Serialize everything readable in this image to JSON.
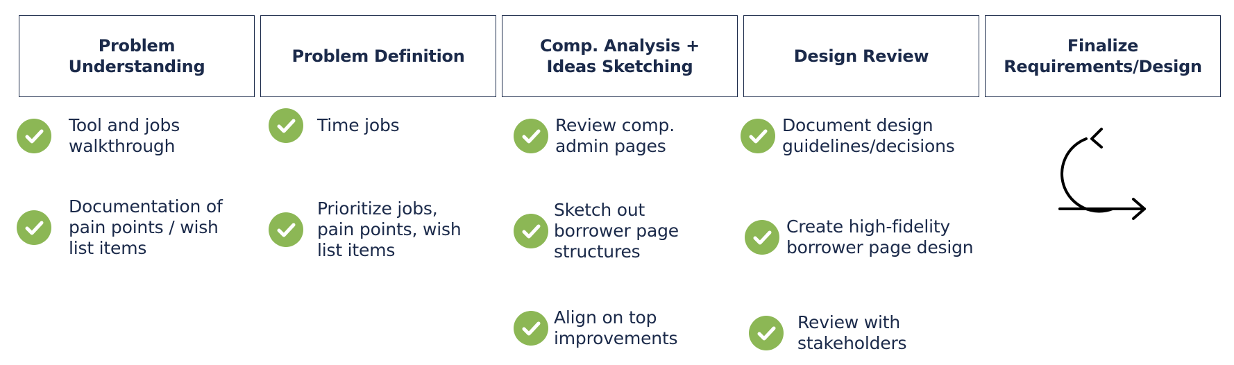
{
  "phases": [
    {
      "title": "Problem\nUnderstanding",
      "tasks": [
        "Tool and jobs\nwalkthrough",
        "Documentation of\npain points / wish\nlist items"
      ]
    },
    {
      "title": "Problem Definition",
      "tasks": [
        "Time jobs",
        "Prioritize jobs,\npain points, wish\nlist items"
      ]
    },
    {
      "title": "Comp. Analysis +\nIdeas Sketching",
      "tasks": [
        "Review comp.\nadmin pages",
        "Sketch out\nborrower page\nstructures",
        "Align on top\nimprovements"
      ]
    },
    {
      "title": "Design Review",
      "tasks": [
        "Document design\nguidelines/decisions",
        "Create high-fidelity\nborrower page design",
        "Review with\nstakeholders"
      ]
    },
    {
      "title": "Finalize\nRequirements/Design",
      "tasks": []
    }
  ],
  "icons": {
    "check": "check-icon",
    "iterate": "iterate-cycle-icon"
  },
  "colors": {
    "navy": "#1b2a4a",
    "check_green": "#8cb755",
    "white": "#ffffff"
  }
}
